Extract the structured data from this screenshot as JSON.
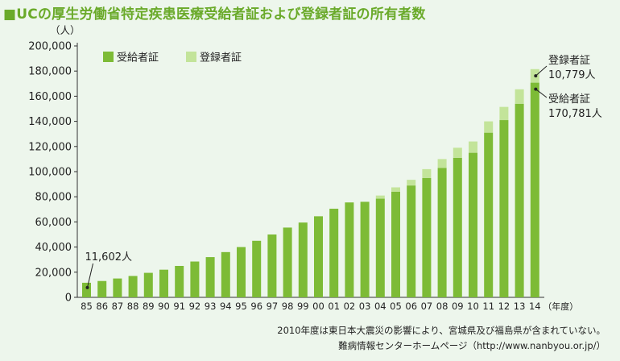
{
  "title": "■UCの厚生労働省特定疾患医療受給者証および登録者証の所有者数",
  "colors": {
    "background": "#edf6ec",
    "recipient": "#7dbb36",
    "registered": "#c3e49a",
    "title": "#6aaa2a"
  },
  "chart_data": {
    "type": "bar",
    "stacked": true,
    "y_unit_label": "（人）",
    "x_unit_label": "（年度）",
    "ylim": [
      0,
      200000
    ],
    "y_ticks": [
      "0",
      "20,000",
      "40,000",
      "60,000",
      "80,000",
      "100,000",
      "120,000",
      "140,000",
      "160,000",
      "180,000",
      "200,000"
    ],
    "grid": false,
    "legend_position": "top-left",
    "categories": [
      "85",
      "86",
      "87",
      "88",
      "89",
      "90",
      "91",
      "92",
      "93",
      "94",
      "95",
      "96",
      "97",
      "98",
      "99",
      "00",
      "01",
      "02",
      "03",
      "04",
      "05",
      "06",
      "07",
      "08",
      "09",
      "10",
      "11",
      "12",
      "13",
      "14"
    ],
    "series": [
      {
        "name": "受給者証",
        "color": "#7dbb36",
        "values": [
          11602,
          13000,
          15000,
          17000,
          19500,
          22000,
          25000,
          28500,
          32000,
          36000,
          40000,
          45000,
          50000,
          55500,
          59500,
          64500,
          70500,
          75500,
          76000,
          78500,
          84000,
          89000,
          95000,
          103000,
          111000,
          115000,
          131000,
          141000,
          154000,
          170781
        ]
      },
      {
        "name": "登録者証",
        "color": "#c3e49a",
        "values": [
          0,
          0,
          0,
          0,
          0,
          0,
          0,
          0,
          0,
          0,
          0,
          0,
          0,
          0,
          0,
          0,
          0,
          0,
          0,
          2500,
          3500,
          4500,
          7000,
          7000,
          8000,
          9000,
          9000,
          10500,
          11500,
          10779
        ]
      }
    ],
    "annotations": [
      {
        "category": "85",
        "lines": [
          "11,602人"
        ]
      },
      {
        "category": "14",
        "series": "登録者証",
        "lines": [
          "登録者証",
          "10,779人"
        ]
      },
      {
        "category": "14",
        "series": "受給者証",
        "lines": [
          "受給者証",
          "170,781人"
        ]
      }
    ]
  },
  "notes": [
    "2010年度は東日本大震災の影響により、宮城県及び福島県が含まれていない。",
    "難病情報センターホームページ（http://www.nanbyou.or.jp/）"
  ]
}
